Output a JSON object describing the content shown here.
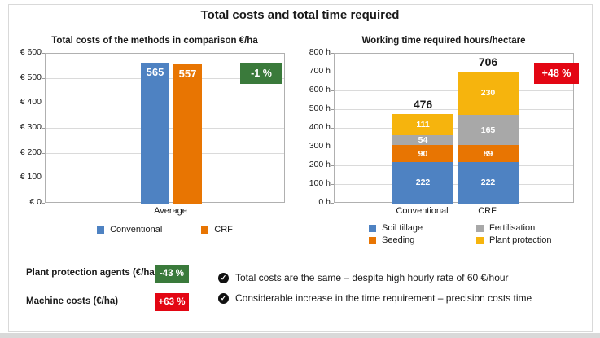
{
  "main_title": "Total costs and total time required",
  "colors": {
    "blue": "#4e82c2",
    "orange": "#e87502",
    "gray": "#a8a8a8",
    "yellow": "#f6b40d",
    "green": "#3a7a3b",
    "red": "#e30613"
  },
  "chart_data": [
    {
      "type": "bar",
      "title": "Total costs of the methods in comparison €/ha",
      "categories": [
        "Average"
      ],
      "series": [
        {
          "name": "Conventional",
          "color_key": "blue",
          "values": [
            565
          ]
        },
        {
          "name": "CRF",
          "color_key": "orange",
          "values": [
            557
          ]
        }
      ],
      "ylim": [
        0,
        600
      ],
      "ytick_step": 100,
      "ytick_format": "€ {v}",
      "grid": true,
      "legend": [
        "Conventional",
        "CRF"
      ],
      "legend_position": "bottom",
      "badge": {
        "label": "-1 %",
        "color_key": "green"
      }
    },
    {
      "type": "stacked-bar",
      "title": "Working time required hours/hectare",
      "categories": [
        "Conventional",
        "CRF"
      ],
      "totals": [
        476,
        706
      ],
      "series": [
        {
          "name": "Soil tillage",
          "color_key": "blue",
          "values": [
            222,
            222
          ]
        },
        {
          "name": "Seeding",
          "color_key": "orange",
          "values": [
            90,
            89
          ]
        },
        {
          "name": "Fertilisation",
          "color_key": "gray",
          "values": [
            54,
            165
          ]
        },
        {
          "name": "Plant protection",
          "color_key": "yellow",
          "values": [
            111,
            230
          ]
        }
      ],
      "ylim": [
        0,
        800
      ],
      "ytick_step": 100,
      "ytick_format": "{v} h",
      "grid": true,
      "legend_order": [
        "Soil tillage",
        "Fertilisation",
        "Seeding",
        "Plant protection"
      ],
      "legend_position": "bottom",
      "badge": {
        "label": "+48 %",
        "color_key": "red"
      }
    }
  ],
  "footer": {
    "metrics": [
      {
        "label": "Plant protection agents (€/ha)",
        "badge": "-43 %",
        "color_key": "green"
      },
      {
        "label": "Machine costs (€/ha)",
        "badge": "+63 %",
        "color_key": "red"
      }
    ],
    "bullets": [
      {
        "icon": "check-circle-icon",
        "glyph": "✓",
        "text": "Total costs are the same – despite high hourly rate of 60 €/hour"
      },
      {
        "icon": "check-circle-icon",
        "glyph": "✓",
        "text": "Considerable increase in the time requirement – precision costs time"
      }
    ]
  }
}
